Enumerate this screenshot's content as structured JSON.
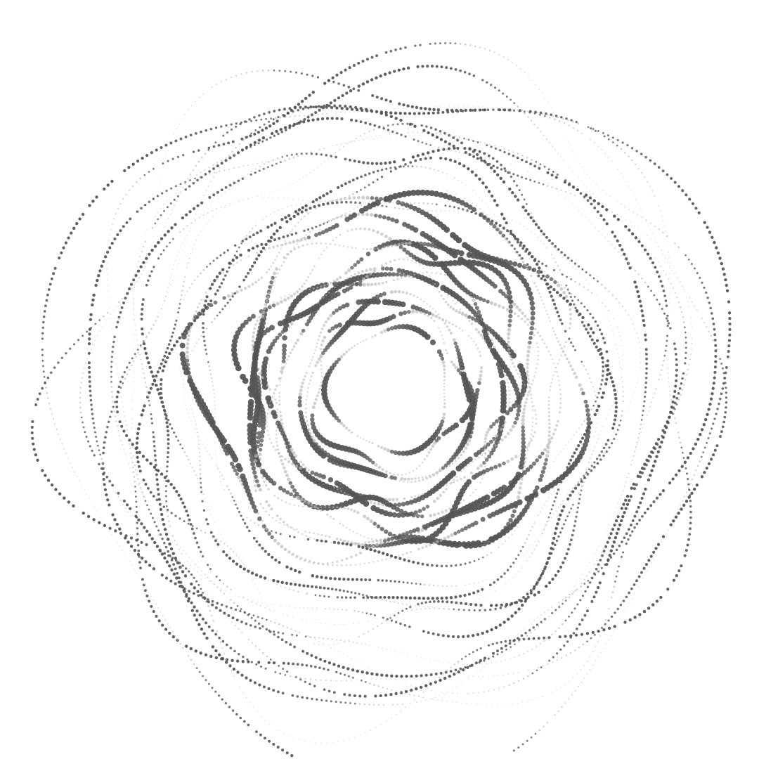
{
  "artwork": {
    "description_kind": "generative-dotted-spiral",
    "background_color": "#ffffff",
    "dot_color_dark": "#555555",
    "dot_color_light": "#bbbbbb",
    "ring_count": 30,
    "seed": 7
  }
}
